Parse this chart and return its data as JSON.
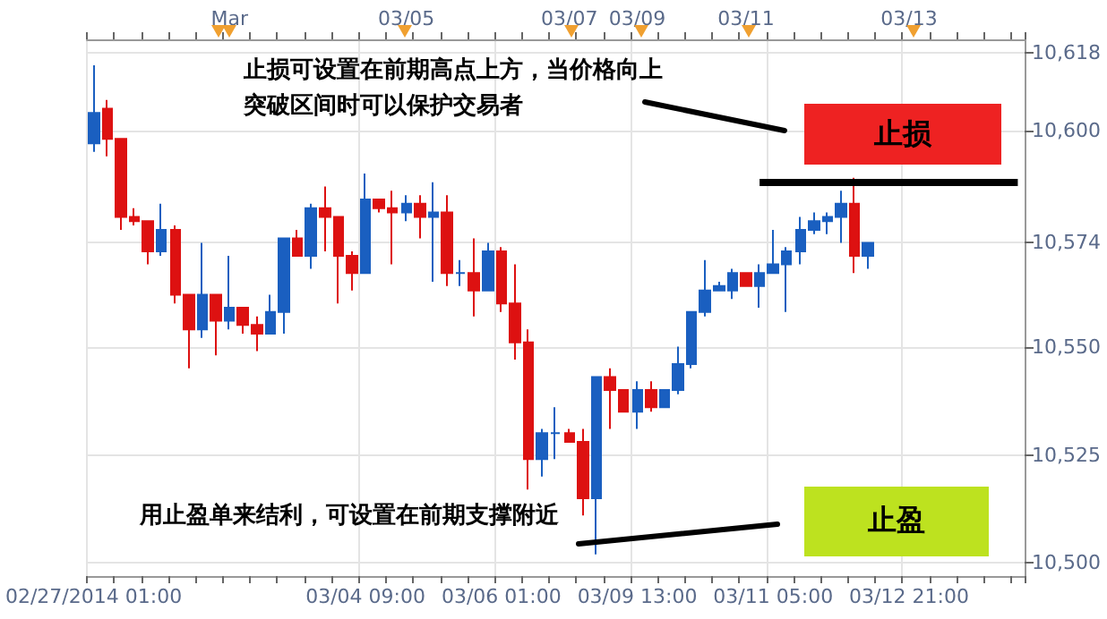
{
  "chart_data": {
    "type": "candlestick",
    "categories": [
      "02/27/2014 01:00",
      null,
      null,
      null,
      null,
      null,
      null,
      null,
      null,
      null,
      null,
      null,
      null,
      null,
      null,
      null,
      null,
      null,
      null,
      null,
      "03/04 09:00",
      null,
      null,
      null,
      null,
      null,
      null,
      null,
      null,
      null,
      "03/06 01:00",
      null,
      null,
      null,
      null,
      null,
      null,
      null,
      null,
      null,
      "03/09 13:00",
      null,
      null,
      null,
      null,
      null,
      null,
      null,
      null,
      null,
      "03/11 05:00",
      null,
      null,
      null,
      null,
      null,
      null,
      null,
      null,
      null,
      "03/12 21:00",
      null,
      null,
      null,
      null,
      null,
      null,
      null,
      null
    ],
    "ohlc": [
      [
        10597,
        10615,
        10595,
        10604
      ],
      [
        10605,
        10607,
        10594,
        10598
      ],
      [
        10598,
        10598,
        10577,
        10580
      ],
      [
        10580,
        10582,
        10578,
        10579
      ],
      [
        10579,
        10579,
        10569,
        10572
      ],
      [
        10572,
        10583,
        10571,
        10577
      ],
      [
        10577,
        10578,
        10560,
        10562
      ],
      [
        10562,
        10562,
        10545,
        10554
      ],
      [
        10554,
        10574,
        10552,
        10562
      ],
      [
        10562,
        10562,
        10548,
        10556
      ],
      [
        10556,
        10571,
        10554,
        10559
      ],
      [
        10559,
        10559,
        10553,
        10555
      ],
      [
        10555,
        10557,
        10549,
        10553
      ],
      [
        10553,
        10562,
        10553,
        10558
      ],
      [
        10558,
        10575,
        10553,
        10575
      ],
      [
        10575,
        10577,
        10571,
        10571
      ],
      [
        10571,
        10583,
        10568,
        10582
      ],
      [
        10582,
        10587,
        10572,
        10580
      ],
      [
        10580,
        10580,
        10560,
        10571
      ],
      [
        10571,
        10572,
        10563,
        10567
      ],
      [
        10567,
        10590,
        10567,
        10584
      ],
      [
        10584,
        10584,
        10581,
        10582
      ],
      [
        10582,
        10586,
        10569,
        10581
      ],
      [
        10581,
        10585,
        10579,
        10583
      ],
      [
        10583,
        10585,
        10575,
        10580
      ],
      [
        10580,
        10588,
        10565,
        10581
      ],
      [
        10581,
        10585,
        10564,
        10567
      ],
      [
        10567,
        10570,
        10564,
        10567
      ],
      [
        10567,
        10575,
        10557,
        10563
      ],
      [
        10563,
        10574,
        10563,
        10572
      ],
      [
        10572,
        10573,
        10558,
        10560
      ],
      [
        10560,
        10569,
        10547,
        10551
      ],
      [
        10551,
        10554,
        10517,
        10524
      ],
      [
        10524,
        10531,
        10520,
        10530
      ],
      [
        10530,
        10536,
        10524,
        10530
      ],
      [
        10530,
        10531,
        10528,
        10528
      ],
      [
        10528,
        10531,
        10511,
        10515
      ],
      [
        10515,
        10543,
        10502,
        10543
      ],
      [
        10543,
        10545,
        10531,
        10540
      ],
      [
        10540,
        10540,
        10535,
        10535
      ],
      [
        10535,
        10542,
        10531,
        10540
      ],
      [
        10540,
        10542,
        10535,
        10536
      ],
      [
        10536,
        10540,
        10536,
        10540
      ],
      [
        10540,
        10550,
        10539,
        10546
      ],
      [
        10546,
        10558,
        10545,
        10558
      ],
      [
        10558,
        10570,
        10557,
        10563
      ],
      [
        10563,
        10565,
        10563,
        10564
      ],
      [
        10563,
        10568,
        10561,
        10567
      ],
      [
        10567,
        10567,
        10564,
        10564
      ],
      [
        10564,
        10569,
        10559,
        10567
      ],
      [
        10567,
        10577,
        10567,
        10569
      ],
      [
        10569,
        10573,
        10558,
        10572
      ],
      [
        10572,
        10580,
        10569,
        10577
      ],
      [
        10577,
        10581,
        10576,
        10579
      ],
      [
        10579,
        10581,
        10576,
        10580
      ],
      [
        10580,
        10586,
        10574,
        10583
      ],
      [
        10583,
        10589,
        10567,
        10571
      ],
      [
        10571,
        10574,
        10568,
        10574
      ],
      null,
      null,
      null,
      null,
      null,
      null,
      null,
      null,
      null,
      null,
      null
    ],
    "colors": [
      "#1a5fc0",
      "#dd1111",
      "#dd1111",
      "#dd1111",
      "#dd1111",
      "#1a5fc0",
      "#dd1111",
      "#dd1111",
      "#1a5fc0",
      "#dd1111",
      "#1a5fc0",
      "#dd1111",
      "#dd1111",
      "#1a5fc0",
      "#1a5fc0",
      "#dd1111",
      "#1a5fc0",
      "#dd1111",
      "#dd1111",
      "#dd1111",
      "#1a5fc0",
      "#dd1111",
      "#dd1111",
      "#1a5fc0",
      "#dd1111",
      "#1a5fc0",
      "#dd1111",
      "#1a5fc0",
      "#dd1111",
      "#1a5fc0",
      "#dd1111",
      "#dd1111",
      "#dd1111",
      "#1a5fc0",
      "#1a5fc0",
      "#dd1111",
      "#dd1111",
      "#1a5fc0",
      "#dd1111",
      "#dd1111",
      "#1a5fc0",
      "#dd1111",
      "#1a5fc0",
      "#1a5fc0",
      "#1a5fc0",
      "#1a5fc0",
      "#1a5fc0",
      "#1a5fc0",
      "#dd1111",
      "#1a5fc0",
      "#1a5fc0",
      "#1a5fc0",
      "#1a5fc0",
      "#1a5fc0",
      "#1a5fc0",
      "#1a5fc0",
      "#dd1111",
      "#1a5fc0",
      null,
      null,
      null,
      null,
      null,
      null,
      null,
      null,
      null,
      null,
      null
    ],
    "ylim": [
      10497,
      10621
    ],
    "yticks": [
      {
        "value": 10500,
        "label": "10,500"
      },
      {
        "value": 10525,
        "label": "10,525"
      },
      {
        "value": 10550,
        "label": "10,550"
      },
      {
        "value": 10574,
        "label": "10,574"
      },
      {
        "value": 10600,
        "label": "10,600"
      },
      {
        "value": 10618,
        "label": "10,618"
      }
    ],
    "grid": true,
    "ref_lines": [
      {
        "axis": "y",
        "value": 10588,
        "color": "#000000"
      }
    ],
    "annotations": [
      "止损可设置在前期高点上方，当价格向上突破区间时可以保护交易者",
      "用止盈单来结利，可设置在前期支撑附近",
      "止损",
      "止盈",
      "Mar",
      "03/05",
      "03/07",
      "03/09",
      "03/11",
      "03/13"
    ]
  }
}
